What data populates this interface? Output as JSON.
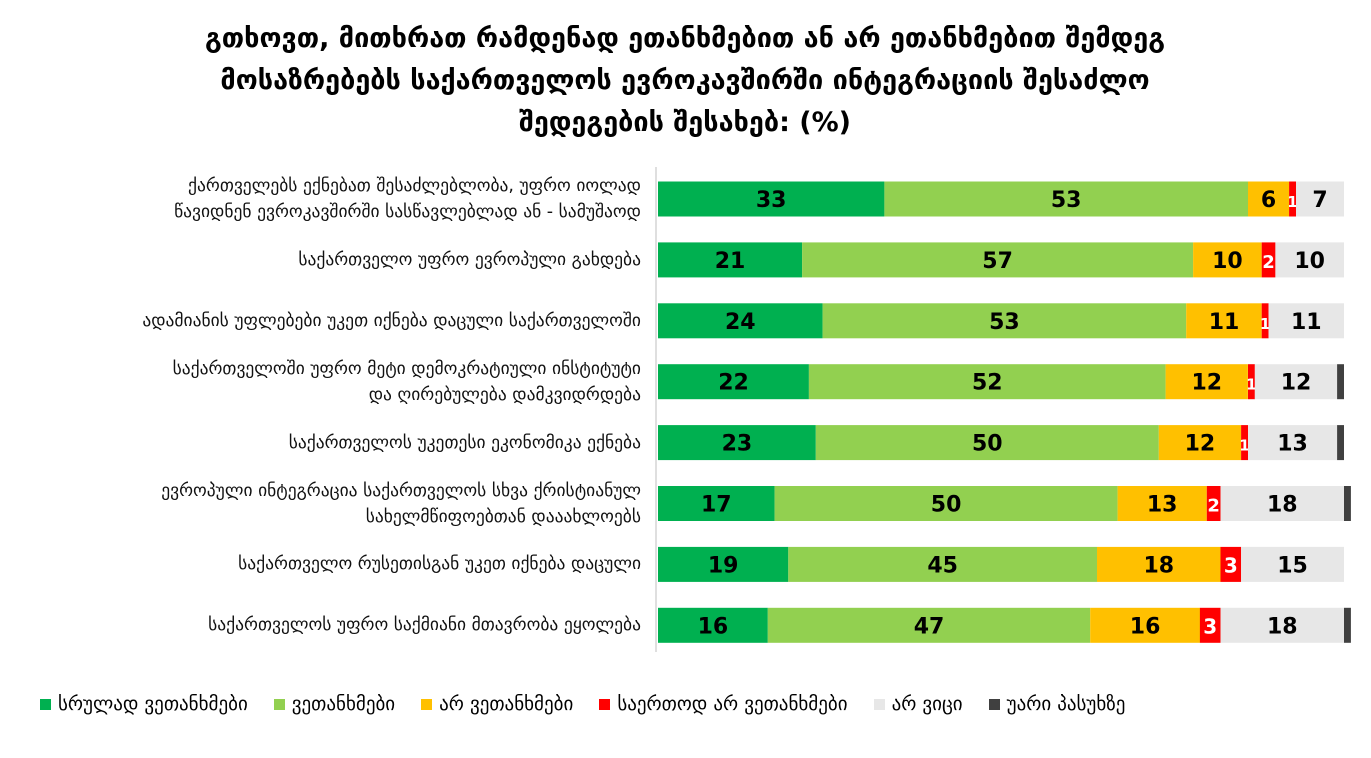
{
  "title_lines": [
    "გთხოვთ, მითხრათ რამდენად ეთანხმებით ან არ ეთანხმებით  შემდეგ",
    "მოსაზრებებს საქართველოს ევროკავშირში ინტეგრაციის შესაძლო",
    "შედეგების შესახებ: (%)"
  ],
  "chart_data": {
    "type": "bar",
    "orientation": "horizontal",
    "stacked": true,
    "title": "გთხოვთ, მითხრათ რამდენად ეთანხმებით ან არ ეთანხმებით  შემდეგ მოსაზრებებს საქართველოს ევროკავშირში ინტეგრაციის შესაძლო შედეგების შესახებ: (%)",
    "xlim": [
      0,
      100
    ],
    "grid": false,
    "legend_position": "bottom",
    "categories": [
      [
        "ქართველებს ექნებათ შესაძლებლობა, უფრო იოლად",
        "წავიდნენ ევროკავშირში სასწავლებლად ან - სამუშაოდ"
      ],
      [
        "საქართველო უფრო ევროპული გახდება"
      ],
      [
        "ადამიანის უფლებები უკეთ იქნება დაცული საქართველოში"
      ],
      [
        "საქართველოში უფრო მეტი დემოკრატიული ინსტიტუტი",
        "და ღირებულება დამკვიდრდება"
      ],
      [
        "საქართველოს უკეთესი ეკონომიკა ექნება"
      ],
      [
        "ევროპული ინტეგრაცია საქართველოს სხვა ქრისტიანულ",
        "სახელმწიფოებთან დააახლოებს"
      ],
      [
        "საქართველო რუსეთისგან უკეთ იქნება დაცული"
      ],
      [
        "საქართველოს უფრო საქმიანი მთავრობა ეყოლება"
      ]
    ],
    "series": [
      {
        "name": "სრულად ვეთანხმები",
        "color": "#00B050",
        "values": [
          33,
          21,
          24,
          22,
          23,
          17,
          19,
          16
        ]
      },
      {
        "name": "ვეთანხმები",
        "color": "#92D050",
        "values": [
          53,
          57,
          53,
          52,
          50,
          50,
          45,
          47
        ]
      },
      {
        "name": "არ ვეთანხმები",
        "color": "#FFC000",
        "values": [
          6,
          10,
          11,
          12,
          12,
          13,
          18,
          16
        ]
      },
      {
        "name": "საერთოდ არ ვეთანხმები",
        "color": "#FF0000",
        "values": [
          1,
          2,
          1,
          1,
          1,
          2,
          3,
          3
        ]
      },
      {
        "name": "არ ვიცი",
        "color": "#E7E7E7",
        "values": [
          7,
          10,
          11,
          12,
          13,
          18,
          15,
          18
        ]
      },
      {
        "name": "უარი პასუხზე",
        "color": "#404040",
        "values": [
          0,
          0,
          0,
          1,
          1,
          1,
          0,
          1
        ]
      }
    ]
  }
}
